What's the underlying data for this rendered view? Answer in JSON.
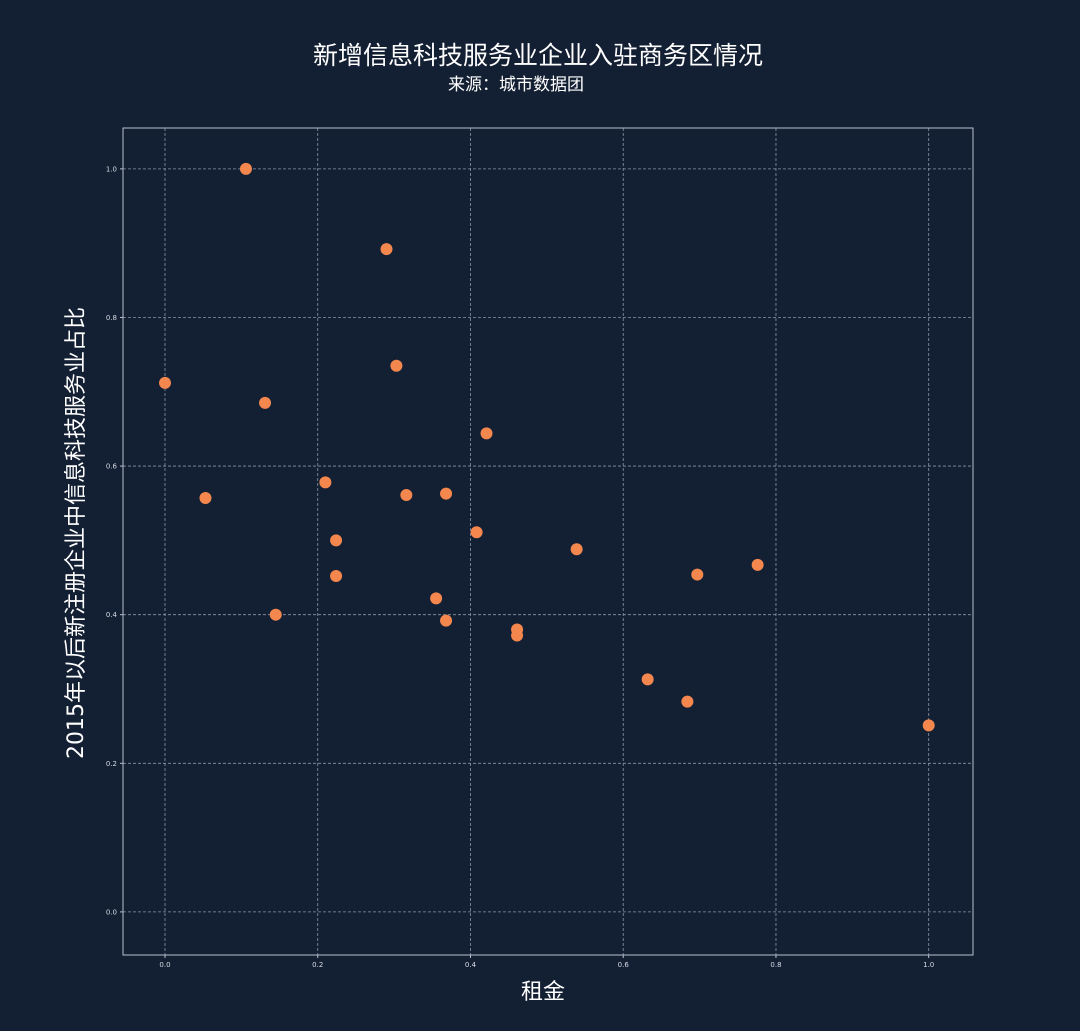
{
  "chart_data": {
    "type": "scatter",
    "title": "新增信息科技服务业企业入驻商务区情况",
    "subtitle": "来源：城市数据团",
    "xlabel": "租金",
    "ylabel": "2015年以后新注册企业中信息科技服务业占比",
    "xlim": [
      -0.055,
      1.058
    ],
    "ylim": [
      -0.058,
      1.055
    ],
    "xticks": [
      0.0,
      0.2,
      0.4,
      0.6,
      0.8,
      1.0
    ],
    "yticks": [
      0.0,
      0.2,
      0.4,
      0.6,
      0.8,
      1.0
    ],
    "xtick_labels": [
      "0.0",
      "0.2",
      "0.4",
      "0.6",
      "0.8",
      "1.0"
    ],
    "ytick_labels": [
      "0.0",
      "0.2",
      "0.4",
      "0.6",
      "0.8",
      "1.0"
    ],
    "grid": true,
    "marker_color": "#f4874e",
    "points": [
      {
        "x": 0.0,
        "y": 0.712
      },
      {
        "x": 0.053,
        "y": 0.557
      },
      {
        "x": 0.106,
        "y": 1.0
      },
      {
        "x": 0.131,
        "y": 0.685
      },
      {
        "x": 0.145,
        "y": 0.4
      },
      {
        "x": 0.21,
        "y": 0.578
      },
      {
        "x": 0.224,
        "y": 0.5
      },
      {
        "x": 0.224,
        "y": 0.452
      },
      {
        "x": 0.29,
        "y": 0.892
      },
      {
        "x": 0.303,
        "y": 0.735
      },
      {
        "x": 0.316,
        "y": 0.561
      },
      {
        "x": 0.355,
        "y": 0.422
      },
      {
        "x": 0.368,
        "y": 0.563
      },
      {
        "x": 0.368,
        "y": 0.392
      },
      {
        "x": 0.408,
        "y": 0.511
      },
      {
        "x": 0.421,
        "y": 0.644
      },
      {
        "x": 0.461,
        "y": 0.38
      },
      {
        "x": 0.461,
        "y": 0.372
      },
      {
        "x": 0.539,
        "y": 0.488
      },
      {
        "x": 0.632,
        "y": 0.313
      },
      {
        "x": 0.684,
        "y": 0.283
      },
      {
        "x": 0.697,
        "y": 0.454
      },
      {
        "x": 0.776,
        "y": 0.467
      },
      {
        "x": 1.0,
        "y": 0.251
      }
    ]
  },
  "colors": {
    "background": "#131f33",
    "grid": "#8a96a8",
    "axes": "#b8c0cc",
    "marker": "#f4874e",
    "text": "#ffffff"
  }
}
